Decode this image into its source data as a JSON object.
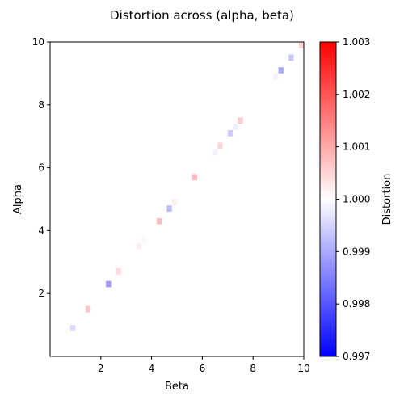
{
  "chart_data": {
    "type": "heatmap",
    "title": "Distortion across (alpha, beta)",
    "xlabel": "Beta",
    "ylabel": "Alpha",
    "xlim": [
      0,
      10
    ],
    "ylim": [
      0,
      10
    ],
    "xticks": [
      2,
      4,
      6,
      8,
      10
    ],
    "yticks": [
      2,
      4,
      6,
      8,
      10
    ],
    "colorbar": {
      "label": "Distortion",
      "range": [
        0.997,
        1.003
      ],
      "ticks": [
        "0.997",
        "0.998",
        "0.999",
        "1.000",
        "1.001",
        "1.002",
        "1.003"
      ],
      "colormap": [
        "#0000ff",
        "#ffffff",
        "#ff0000"
      ]
    },
    "cells": [
      {
        "beta": 0.9,
        "alpha": 0.9,
        "value": 0.99955
      },
      {
        "beta": 1.5,
        "alpha": 1.5,
        "value": 1.0007
      },
      {
        "beta": 2.3,
        "alpha": 2.3,
        "value": 0.9988
      },
      {
        "beta": 2.7,
        "alpha": 2.7,
        "value": 1.0004
      },
      {
        "beta": 3.5,
        "alpha": 3.5,
        "value": 1.0002
      },
      {
        "beta": 3.7,
        "alpha": 3.7,
        "value": 1.0001
      },
      {
        "beta": 4.3,
        "alpha": 4.3,
        "value": 1.0008
      },
      {
        "beta": 4.7,
        "alpha": 4.7,
        "value": 0.9992
      },
      {
        "beta": 4.9,
        "alpha": 4.9,
        "value": 1.0002
      },
      {
        "beta": 5.7,
        "alpha": 5.7,
        "value": 1.0008
      },
      {
        "beta": 6.5,
        "alpha": 6.5,
        "value": 0.99985
      },
      {
        "beta": 6.7,
        "alpha": 6.7,
        "value": 1.0005
      },
      {
        "beta": 7.1,
        "alpha": 7.1,
        "value": 0.9994
      },
      {
        "beta": 7.3,
        "alpha": 7.3,
        "value": 0.9998
      },
      {
        "beta": 7.5,
        "alpha": 7.5,
        "value": 1.0006
      },
      {
        "beta": 8.9,
        "alpha": 8.9,
        "value": 0.99985
      },
      {
        "beta": 9.1,
        "alpha": 9.1,
        "value": 0.999
      },
      {
        "beta": 9.5,
        "alpha": 9.5,
        "value": 0.9993
      },
      {
        "beta": 9.9,
        "alpha": 9.9,
        "value": 1.0005
      }
    ]
  }
}
